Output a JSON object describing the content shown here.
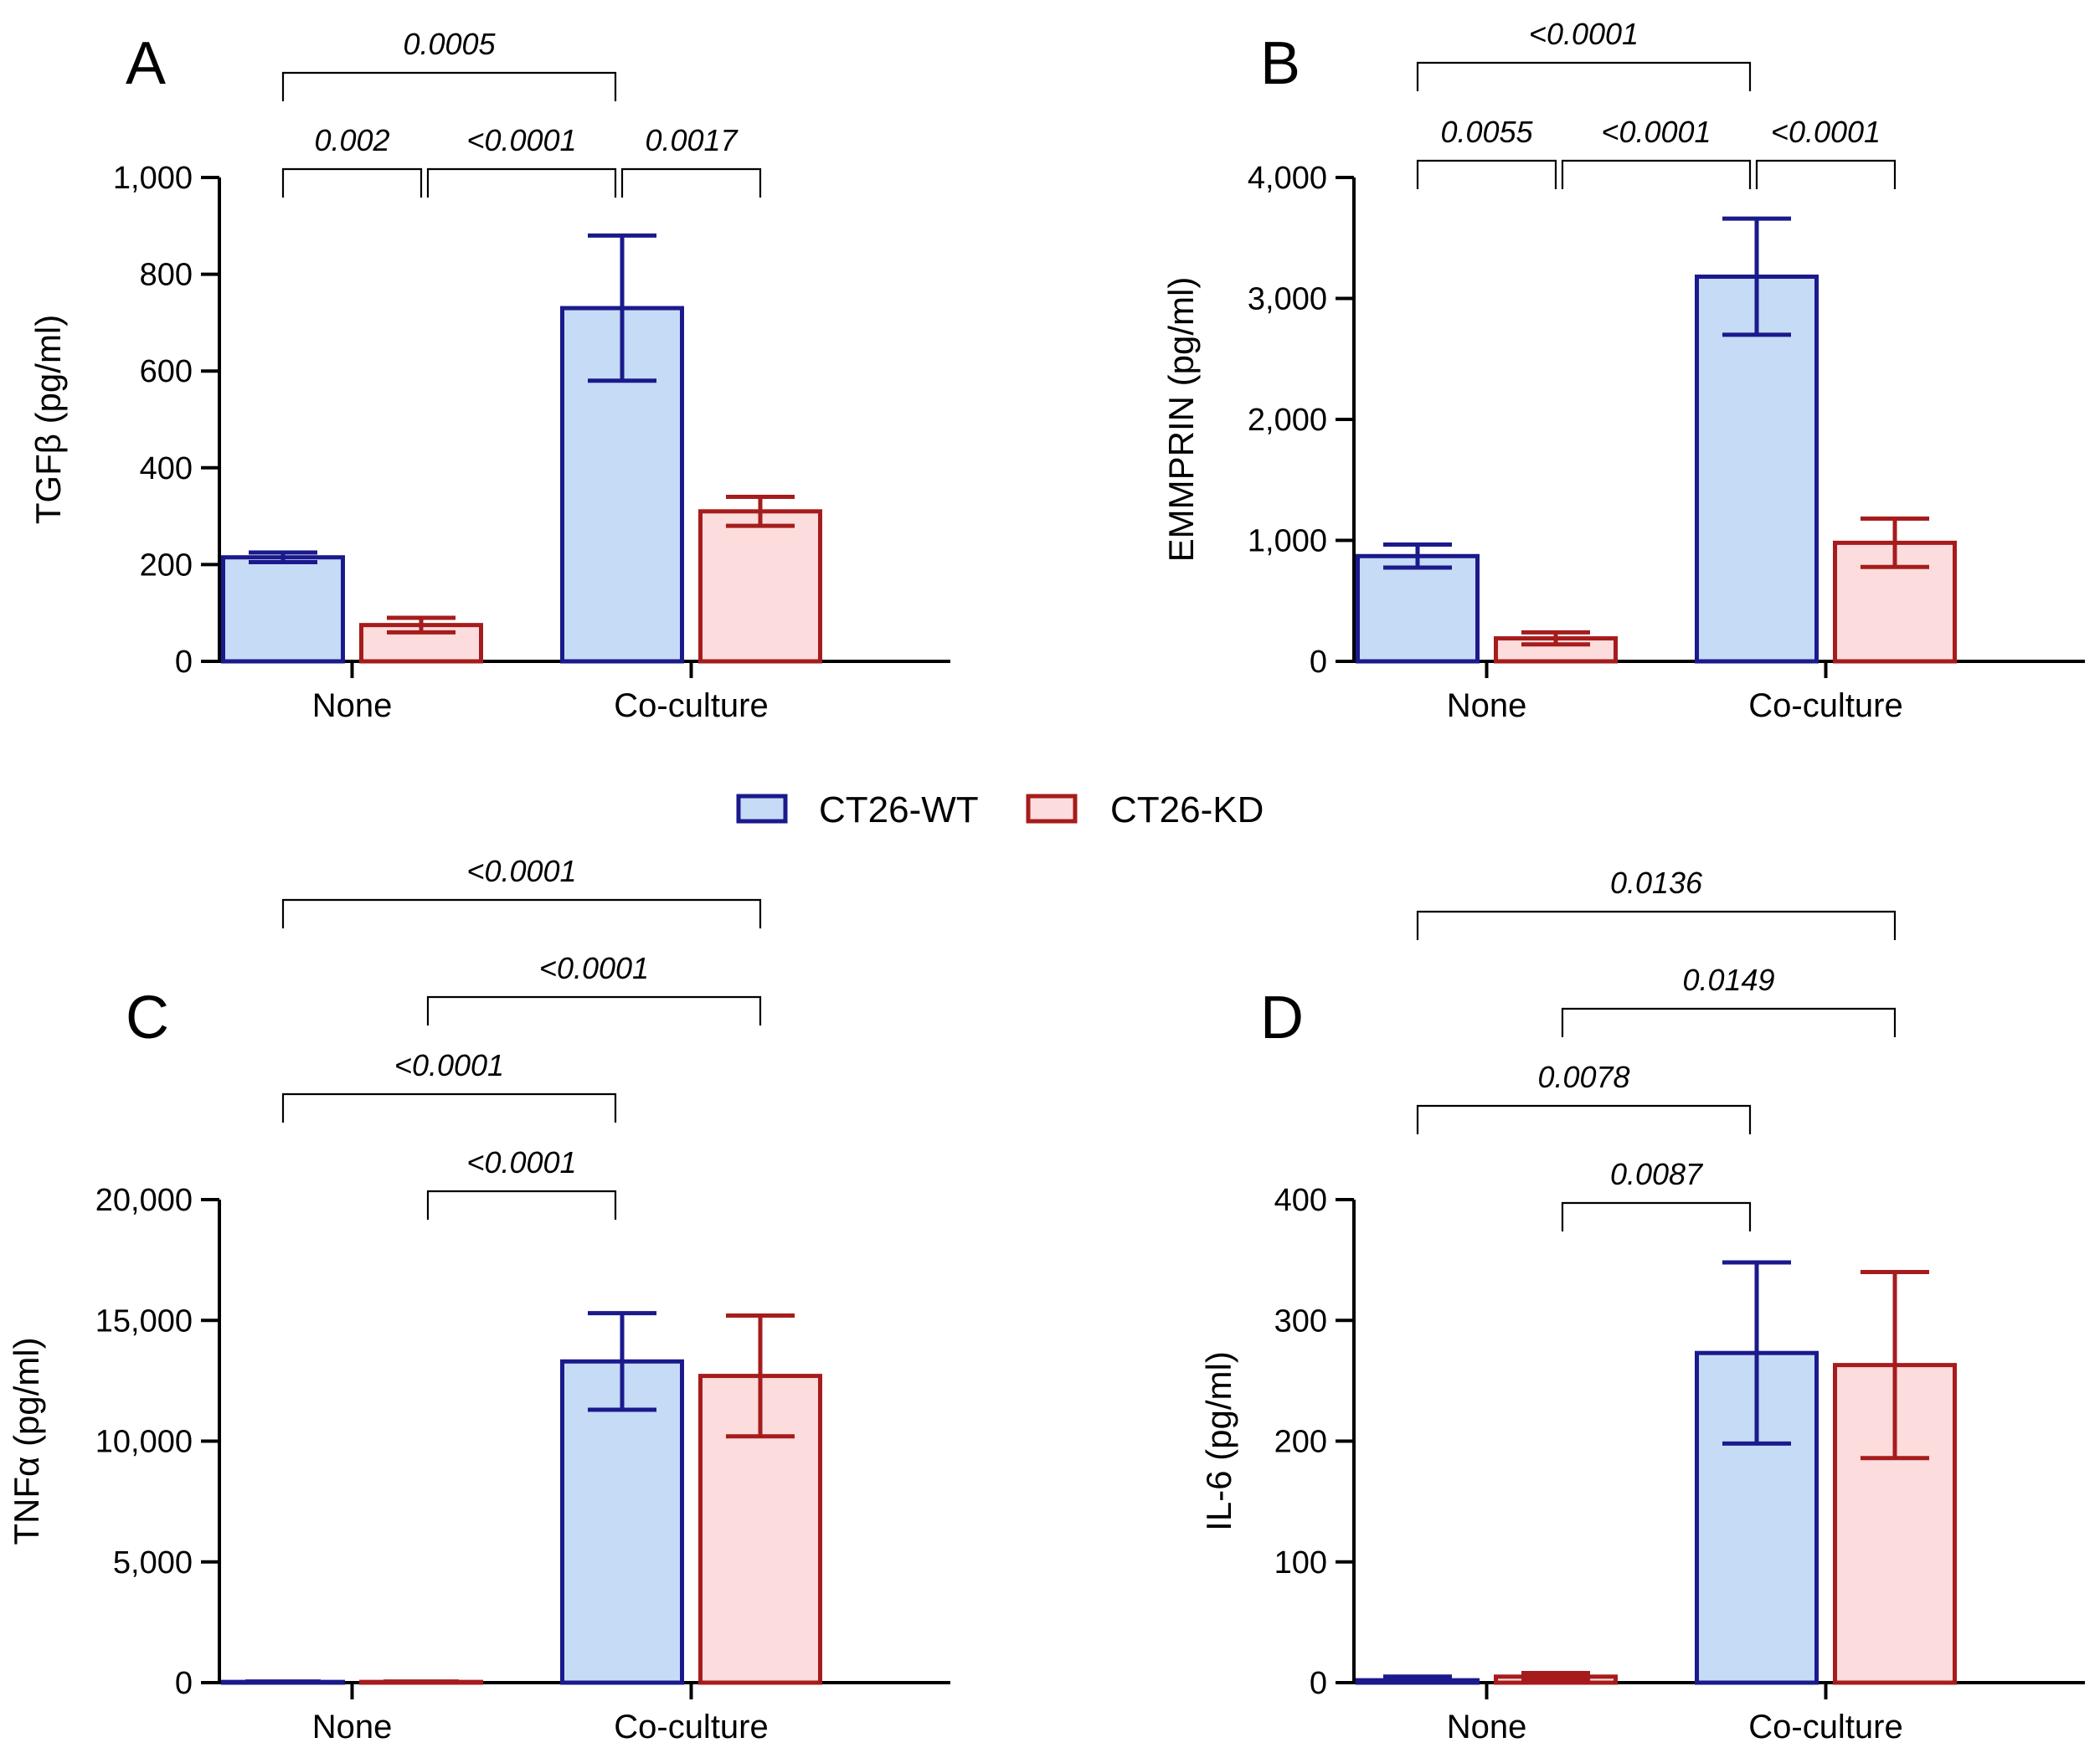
{
  "legend": {
    "items": [
      {
        "label": "CT26-WT",
        "fill": "#c6dbf5",
        "stroke": "#1a1a8c"
      },
      {
        "label": "CT26-KD",
        "fill": "#fcdcdc",
        "stroke": "#a61c1c"
      }
    ]
  },
  "chart_data": [
    {
      "type": "bar",
      "panel": "A",
      "ylabel": "TGFβ (pg/ml)",
      "ylim": [
        0,
        1000
      ],
      "yticks": [
        0,
        200,
        400,
        600,
        800,
        1000
      ],
      "ytick_labels": [
        "0",
        "200",
        "400",
        "600",
        "800",
        "1,000"
      ],
      "categories": [
        "None",
        "Co-culture"
      ],
      "series": [
        {
          "name": "CT26-WT",
          "values": [
            215,
            730
          ],
          "errors": [
            10,
            150
          ]
        },
        {
          "name": "CT26-KD",
          "values": [
            75,
            310
          ],
          "errors": [
            15,
            30
          ]
        }
      ],
      "comparisons": [
        {
          "from": [
            0,
            0
          ],
          "to": [
            1,
            0
          ],
          "label": "0.0005",
          "level": 2
        },
        {
          "from": [
            0,
            0
          ],
          "to": [
            0,
            1
          ],
          "label": "0.002",
          "level": 1
        },
        {
          "from": [
            0,
            1
          ],
          "to": [
            1,
            0
          ],
          "label": "<0.0001",
          "level": 1
        },
        {
          "from": [
            1,
            0
          ],
          "to": [
            1,
            1
          ],
          "label": "0.0017",
          "level": 1
        }
      ]
    },
    {
      "type": "bar",
      "panel": "B",
      "ylabel": "EMMPRIN (pg/ml)",
      "ylim": [
        0,
        4000
      ],
      "yticks": [
        0,
        1000,
        2000,
        3000,
        4000
      ],
      "ytick_labels": [
        "0",
        "1,000",
        "2,000",
        "3,000",
        "4,000"
      ],
      "categories": [
        "None",
        "Co-culture"
      ],
      "series": [
        {
          "name": "CT26-WT",
          "values": [
            870,
            3180
          ],
          "errors": [
            95,
            480
          ]
        },
        {
          "name": "CT26-KD",
          "values": [
            190,
            980
          ],
          "errors": [
            50,
            200
          ]
        }
      ],
      "comparisons": [
        {
          "from": [
            0,
            0
          ],
          "to": [
            1,
            0
          ],
          "label": "<0.0001",
          "level": 2
        },
        {
          "from": [
            0,
            0
          ],
          "to": [
            0,
            1
          ],
          "label": "0.0055",
          "level": 1
        },
        {
          "from": [
            0,
            1
          ],
          "to": [
            1,
            0
          ],
          "label": "<0.0001",
          "level": 1
        },
        {
          "from": [
            1,
            0
          ],
          "to": [
            1,
            1
          ],
          "label": "<0.0001",
          "level": 1
        }
      ]
    },
    {
      "type": "bar",
      "panel": "C",
      "ylabel": "TNFα (pg/ml)",
      "ylim": [
        0,
        20000
      ],
      "yticks": [
        0,
        5000,
        10000,
        15000,
        20000
      ],
      "ytick_labels": [
        "0",
        "5,000",
        "10,000",
        "15,000",
        "20,000"
      ],
      "categories": [
        "None",
        "Co-culture"
      ],
      "series": [
        {
          "name": "CT26-WT",
          "values": [
            30,
            13300
          ],
          "errors": [
            0,
            2000
          ]
        },
        {
          "name": "CT26-KD",
          "values": [
            30,
            12700
          ],
          "errors": [
            0,
            2500
          ]
        }
      ],
      "comparisons": [
        {
          "from": [
            0,
            0
          ],
          "to": [
            1,
            1
          ],
          "label": "<0.0001",
          "level": 4
        },
        {
          "from": [
            0,
            1
          ],
          "to": [
            1,
            1
          ],
          "label": "<0.0001",
          "level": 3
        },
        {
          "from": [
            0,
            0
          ],
          "to": [
            1,
            0
          ],
          "label": "<0.0001",
          "level": 2
        },
        {
          "from": [
            0,
            1
          ],
          "to": [
            1,
            0
          ],
          "label": "<0.0001",
          "level": 1
        }
      ]
    },
    {
      "type": "bar",
      "panel": "D",
      "ylabel": "IL-6 (pg/ml)",
      "ylim": [
        0,
        400
      ],
      "yticks": [
        0,
        100,
        200,
        300,
        400
      ],
      "ytick_labels": [
        "0",
        "100",
        "200",
        "300",
        "400"
      ],
      "categories": [
        "None",
        "Co-culture"
      ],
      "series": [
        {
          "name": "CT26-WT",
          "values": [
            2,
            273
          ],
          "errors": [
            3,
            75
          ]
        },
        {
          "name": "CT26-KD",
          "values": [
            5,
            263
          ],
          "errors": [
            3,
            77
          ]
        }
      ],
      "comparisons": [
        {
          "from": [
            0,
            0
          ],
          "to": [
            1,
            1
          ],
          "label": "0.0136",
          "level": 4
        },
        {
          "from": [
            0,
            1
          ],
          "to": [
            1,
            1
          ],
          "label": "0.0149",
          "level": 3
        },
        {
          "from": [
            0,
            0
          ],
          "to": [
            1,
            0
          ],
          "label": "0.0078",
          "level": 2
        },
        {
          "from": [
            0,
            1
          ],
          "to": [
            1,
            0
          ],
          "label": "0.0087",
          "level": 1
        }
      ]
    }
  ]
}
